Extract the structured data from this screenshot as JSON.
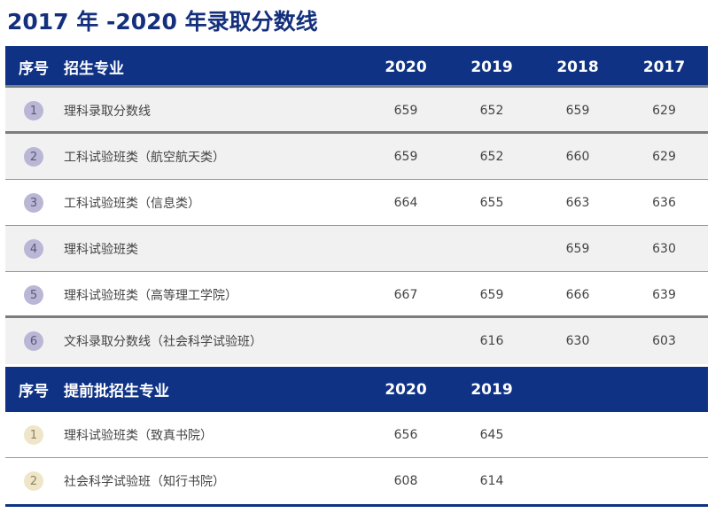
{
  "title": "2017 年 -2020 年录取分数线",
  "section1": {
    "headers": {
      "idx": "序号",
      "name": "招生专业",
      "y0": "2020",
      "y1": "2019",
      "y2": "2018",
      "y3": "2017"
    },
    "rows": [
      {
        "idx": "1",
        "name": "理科录取分数线",
        "v0": "659",
        "v1": "652",
        "v2": "659",
        "v3": "629"
      },
      {
        "idx": "2",
        "name": "工科试验班类（航空航天类）",
        "v0": "659",
        "v1": "652",
        "v2": "660",
        "v3": "629"
      },
      {
        "idx": "3",
        "name": "工科试验班类（信息类）",
        "v0": "664",
        "v1": "655",
        "v2": "663",
        "v3": "636"
      },
      {
        "idx": "4",
        "name": "理科试验班类",
        "v0": "",
        "v1": "",
        "v2": "659",
        "v3": "630"
      },
      {
        "idx": "5",
        "name": "理科试验班类（高等理工学院）",
        "v0": "667",
        "v1": "659",
        "v2": "666",
        "v3": "639"
      },
      {
        "idx": "6",
        "name": "文科录取分数线（社会科学试验班）",
        "v0": "",
        "v1": "616",
        "v2": "630",
        "v3": "603"
      }
    ]
  },
  "section2": {
    "headers": {
      "idx": "序号",
      "name": "提前批招生专业",
      "y0": "2020",
      "y1": "2019"
    },
    "rows": [
      {
        "idx": "1",
        "name": "理科试验班类（致真书院）",
        "v0": "656",
        "v1": "645"
      },
      {
        "idx": "2",
        "name": "社会科学试验班（知行书院）",
        "v0": "608",
        "v1": "614"
      }
    ]
  },
  "colors": {
    "header_bg": "#0f3285",
    "title": "#14307d",
    "badge_purple": "#b9b6d6",
    "badge_cream": "#efe6c9"
  }
}
